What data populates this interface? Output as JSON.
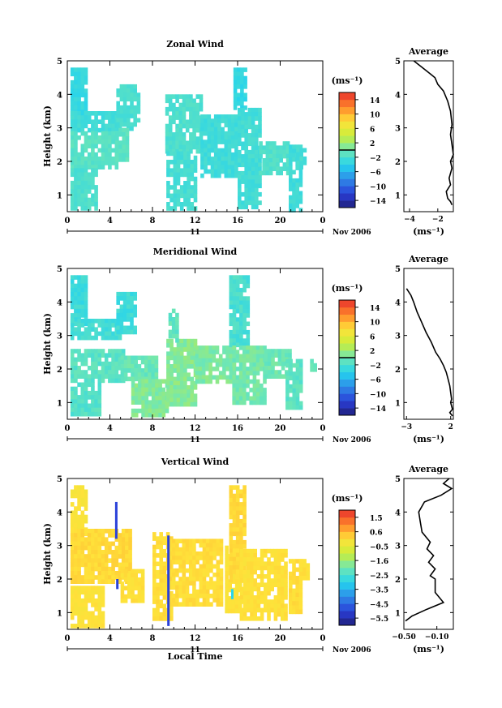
{
  "chart_data": [
    {
      "type": "heatmap",
      "title": "Zonal Wind",
      "ylabel": "Height (km)",
      "xlim": [
        0,
        24
      ],
      "ylim": [
        0.5,
        5
      ],
      "xticks": [
        "0",
        "4",
        "8",
        "12",
        "16",
        "20",
        "0"
      ],
      "yticks": [
        "1",
        "2",
        "3",
        "4",
        "5"
      ],
      "day_label": "11",
      "date_label": "Nov 2006",
      "xlabel": "",
      "colorbar": {
        "unit": "(ms⁻¹)",
        "ticks": [
          "14",
          "10",
          "6",
          "2",
          "−2",
          "−6",
          "−10",
          "−14"
        ],
        "range": [
          -16,
          16
        ],
        "zero_line": 0
      },
      "field": {
        "value_range": [
          -4,
          0
        ],
        "segments": [
          {
            "x": [
              0.3,
              1.7
            ],
            "y": [
              3.4,
              4.8
            ],
            "value": -3.2
          },
          {
            "x": [
              0.3,
              4.8
            ],
            "y": [
              2.9,
              3.5
            ],
            "value": -2.6
          },
          {
            "x": [
              0.3,
              4.5
            ],
            "y": [
              1.8,
              2.9
            ],
            "value": -1.2
          },
          {
            "x": [
              0.3,
              2.8
            ],
            "y": [
              0.6,
              1.8
            ],
            "value": -1.8
          },
          {
            "x": [
              4.6,
              6.6
            ],
            "y": [
              3.0,
              4.3
            ],
            "value": -2.0
          },
          {
            "x": [
              4.5,
              5.5
            ],
            "y": [
              2.0,
              3.0
            ],
            "value": -1.0
          },
          {
            "x": [
              9.2,
              12.5
            ],
            "y": [
              2.3,
              4.0
            ],
            "value": -1.8
          },
          {
            "x": [
              9.3,
              12.0
            ],
            "y": [
              0.6,
              2.3
            ],
            "value": -2.2
          },
          {
            "x": [
              12.5,
              16.0
            ],
            "y": [
              1.6,
              3.4
            ],
            "value": -2.6
          },
          {
            "x": [
              15.6,
              16.8
            ],
            "y": [
              3.6,
              4.8
            ],
            "value": -3.4
          },
          {
            "x": [
              16.0,
              18.0
            ],
            "y": [
              0.7,
              3.6
            ],
            "value": -2.4
          },
          {
            "x": [
              18.0,
              20.8
            ],
            "y": [
              1.7,
              2.6
            ],
            "value": -1.6
          },
          {
            "x": [
              20.8,
              21.8
            ],
            "y": [
              0.6,
              2.5
            ],
            "value": -2.6
          },
          {
            "x": [
              21.5,
              22.3
            ],
            "y": [
              1.8,
              2.4
            ],
            "value": -2.2
          }
        ]
      },
      "profile": {
        "title": "Average",
        "xlabel": "(ms⁻¹)",
        "xticks": [
          "−4",
          "−2"
        ],
        "xlim": [
          -4.4,
          -0.9
        ],
        "x": [
          -3.7,
          -3.1,
          -2.5,
          -2.2,
          -2.0,
          -1.6,
          -1.3,
          -1.1,
          -1.0,
          -1.1,
          -1.0,
          -0.9,
          -1.1,
          -1.0,
          -1.2,
          -1.1,
          -1.4,
          -1.3,
          -1.1,
          -1.0
        ],
        "y": [
          5.0,
          4.8,
          4.6,
          4.5,
          4.3,
          4.1,
          3.8,
          3.5,
          3.1,
          2.8,
          2.5,
          2.2,
          2.0,
          1.8,
          1.5,
          1.3,
          1.1,
          0.9,
          0.8,
          0.7
        ]
      }
    },
    {
      "type": "heatmap",
      "title": "Meridional Wind",
      "ylabel": "Height (km)",
      "xlim": [
        0,
        24
      ],
      "ylim": [
        0.5,
        5
      ],
      "xticks": [
        "0",
        "4",
        "8",
        "12",
        "16",
        "20",
        "0"
      ],
      "yticks": [
        "1",
        "2",
        "3",
        "4",
        "5"
      ],
      "day_label": "11",
      "date_label": "Nov 2006",
      "xlabel": "",
      "colorbar": {
        "unit": "(ms⁻¹)",
        "ticks": [
          "14",
          "10",
          "6",
          "2",
          "−2",
          "−6",
          "−10",
          "−14"
        ],
        "range": [
          -16,
          16
        ],
        "zero_line": 0
      },
      "field": {
        "value_range": [
          -4,
          2
        ],
        "segments": [
          {
            "x": [
              0.3,
              1.8
            ],
            "y": [
              3.3,
              4.8
            ],
            "value": -2.8
          },
          {
            "x": [
              0.3,
              4.8
            ],
            "y": [
              2.9,
              3.5
            ],
            "value": -2.4
          },
          {
            "x": [
              0.3,
              5.2
            ],
            "y": [
              1.6,
              2.6
            ],
            "value": -1.2
          },
          {
            "x": [
              0.3,
              3.0
            ],
            "y": [
              0.6,
              1.6
            ],
            "value": -1.4
          },
          {
            "x": [
              4.6,
              6.5
            ],
            "y": [
              3.1,
              4.3
            ],
            "value": -2.6
          },
          {
            "x": [
              5.0,
              8.5
            ],
            "y": [
              1.7,
              2.4
            ],
            "value": -0.4
          },
          {
            "x": [
              6.0,
              9.2
            ],
            "y": [
              0.6,
              1.7
            ],
            "value": 0.8
          },
          {
            "x": [
              9.3,
              12.0
            ],
            "y": [
              1.0,
              2.9
            ],
            "value": 1.0
          },
          {
            "x": [
              9.5,
              10.3
            ],
            "y": [
              2.9,
              3.8
            ],
            "value": -0.8
          },
          {
            "x": [
              12.0,
              15.6
            ],
            "y": [
              1.6,
              2.7
            ],
            "value": 0.6
          },
          {
            "x": [
              15.2,
              16.8
            ],
            "y": [
              2.7,
              4.8
            ],
            "value": -2.0
          },
          {
            "x": [
              15.5,
              18.6
            ],
            "y": [
              1.0,
              2.7
            ],
            "value": 0.2
          },
          {
            "x": [
              18.5,
              20.8
            ],
            "y": [
              1.8,
              2.6
            ],
            "value": -0.2
          },
          {
            "x": [
              20.5,
              21.8
            ],
            "y": [
              0.8,
              2.3
            ],
            "value": -1.0
          },
          {
            "x": [
              22.8,
              23.3
            ],
            "y": [
              2.0,
              2.3
            ],
            "value": -0.4
          }
        ]
      },
      "profile": {
        "title": "Average",
        "xlabel": "(ms⁻¹)",
        "xticks": [
          "−3",
          "2"
        ],
        "xlim": [
          -3.3,
          2.3
        ],
        "x": [
          -3.0,
          -2.5,
          -2.2,
          -1.8,
          -1.3,
          -0.8,
          -0.2,
          0.3,
          0.8,
          1.2,
          1.5,
          1.7,
          1.9,
          2.0,
          2.1,
          2.0,
          2.1,
          2.2,
          1.9,
          2.2
        ],
        "y": [
          4.4,
          4.2,
          4.0,
          3.7,
          3.4,
          3.1,
          2.8,
          2.5,
          2.3,
          2.1,
          1.9,
          1.7,
          1.5,
          1.3,
          1.1,
          1.0,
          0.9,
          0.8,
          0.7,
          0.6
        ]
      }
    },
    {
      "type": "heatmap",
      "title": "Vertical Wind",
      "ylabel": "Height (km)",
      "xlim": [
        0,
        24
      ],
      "ylim": [
        0.5,
        5
      ],
      "xticks": [
        "0",
        "4",
        "8",
        "12",
        "16",
        "20",
        "0"
      ],
      "yticks": [
        "1",
        "2",
        "3",
        "4",
        "5"
      ],
      "day_label": "11",
      "date_label": "Nov 2006",
      "xlabel": "Local Time",
      "colorbar": {
        "unit": "(ms⁻¹)",
        "ticks": [
          "1.5",
          "0.6",
          "−0.5",
          "−1.6",
          "−2.5",
          "−3.5",
          "−4.5",
          "−5.5"
        ],
        "range": [
          -6.0,
          2.0
        ],
        "zero_line": null
      },
      "field": {
        "value_range": [
          -0.4,
          0.3
        ],
        "segments": [
          {
            "x": [
              0.3,
              1.8
            ],
            "y": [
              3.3,
              4.8
            ],
            "value": -0.1
          },
          {
            "x": [
              0.3,
              5.8
            ],
            "y": [
              1.9,
              3.5
            ],
            "value": 0.1
          },
          {
            "x": [
              0.3,
              3.2
            ],
            "y": [
              0.6,
              1.8
            ],
            "value": -0.05
          },
          {
            "x": [
              5.0,
              7.2
            ],
            "y": [
              1.4,
              2.3
            ],
            "value": 0.0
          },
          {
            "x": [
              8.0,
              9.6
            ],
            "y": [
              0.8,
              3.4
            ],
            "value": 0.05
          },
          {
            "x": [
              9.5,
              14.6
            ],
            "y": [
              1.2,
              3.2
            ],
            "value": 0.05
          },
          {
            "x": [
              14.8,
              16.2
            ],
            "y": [
              1.0,
              3.0
            ],
            "value": -0.05
          },
          {
            "x": [
              15.2,
              16.6
            ],
            "y": [
              2.0,
              4.8
            ],
            "value": 0.1
          },
          {
            "x": [
              16.2,
              20.6
            ],
            "y": [
              0.8,
              2.9
            ],
            "value": 0.0
          },
          {
            "x": [
              20.8,
              21.8
            ],
            "y": [
              1.0,
              2.6
            ],
            "value": 0.05
          },
          {
            "x": [
              21.8,
              22.6
            ],
            "y": [
              2.0,
              2.6
            ],
            "value": 0.0
          }
        ],
        "spikes": [
          {
            "x": 4.6,
            "y": [
              3.2,
              4.3
            ],
            "value": -5.0
          },
          {
            "x": 4.7,
            "y": [
              1.7,
              2.0
            ],
            "value": -5.0
          },
          {
            "x": 9.5,
            "y": [
              0.6,
              3.3
            ],
            "value": -5.0
          },
          {
            "x": 15.5,
            "y": [
              1.4,
              1.7
            ],
            "value": -3.0
          }
        ]
      },
      "profile": {
        "title": "Average",
        "xlabel": "(ms⁻¹)",
        "xticks": [
          "−0.50",
          "−0.10"
        ],
        "xlim": [
          -0.5,
          0.1
        ],
        "x": [
          0.05,
          -0.02,
          0.08,
          -0.05,
          -0.25,
          -0.32,
          -0.3,
          -0.28,
          -0.18,
          -0.22,
          -0.14,
          -0.2,
          -0.12,
          -0.18,
          -0.12,
          -0.12,
          -0.12,
          -0.02,
          -0.22,
          -0.4,
          -0.48
        ],
        "y": [
          5.0,
          4.85,
          4.7,
          4.5,
          4.3,
          4.0,
          3.7,
          3.4,
          3.1,
          2.9,
          2.7,
          2.5,
          2.3,
          2.1,
          2.0,
          1.8,
          1.6,
          1.3,
          1.1,
          0.9,
          0.75
        ]
      }
    }
  ]
}
